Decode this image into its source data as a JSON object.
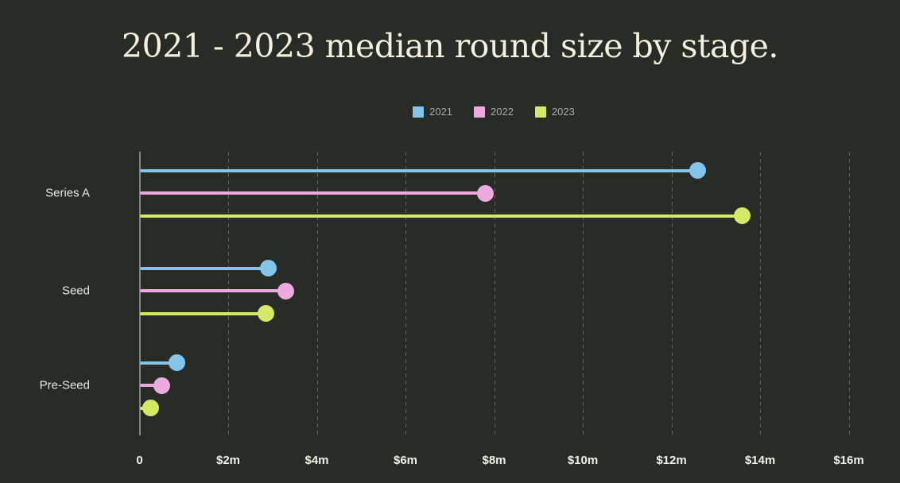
{
  "title": "2021 - 2023 median round size by stage.",
  "colors": {
    "background": "#282c26",
    "title_text": "#f4efde",
    "axis_line": "#84867e",
    "gridline": "#60645c",
    "tick_text": "#eff0e8",
    "category_text": "#e7e8e1",
    "legend_text": "#a8aaa2",
    "series_2021": "#84c3ea",
    "series_2022": "#edaade",
    "series_2023": "#d5e964"
  },
  "chart_data": {
    "type": "bar",
    "variant": "horizontal-lollipop",
    "title": "2021 - 2023 median round size by stage.",
    "unit": "USD millions",
    "categories": [
      "Series A",
      "Seed",
      "Pre-Seed"
    ],
    "series": [
      {
        "name": "2021",
        "color": "#84c3ea",
        "values": [
          12.6,
          2.9,
          0.85
        ]
      },
      {
        "name": "2022",
        "color": "#edaade",
        "values": [
          7.8,
          3.3,
          0.5
        ]
      },
      {
        "name": "2023",
        "color": "#d5e964",
        "values": [
          13.6,
          2.85,
          0.25
        ]
      }
    ],
    "x_ticks": [
      {
        "value": 0,
        "label": "0"
      },
      {
        "value": 2,
        "label": "$2m"
      },
      {
        "value": 4,
        "label": "$4m"
      },
      {
        "value": 6,
        "label": "$6m"
      },
      {
        "value": 8,
        "label": "$8m"
      },
      {
        "value": 10,
        "label": "$10m"
      },
      {
        "value": 12,
        "label": "$12m"
      },
      {
        "value": 14,
        "label": "$14m"
      },
      {
        "value": 16,
        "label": "$16m"
      }
    ],
    "xlim": [
      0,
      16.6
    ],
    "xlabel": "",
    "ylabel": "",
    "grid": "vertical-dashed",
    "legend_position": "top-center"
  }
}
